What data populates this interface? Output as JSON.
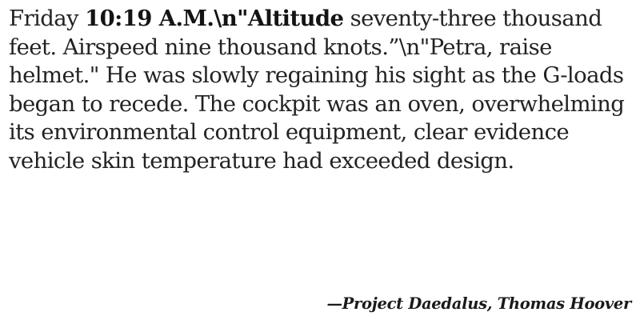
{
  "quote": {
    "segments": [
      {
        "text": "Friday ",
        "bold": false
      },
      {
        "text": "10:19 A.M.\\n\"Altitude",
        "bold": true
      },
      {
        "text": " seventy-three thousand feet. Airspeed nine thousand knots.”\\n\"Petra, raise helmet.\" He was slowly regaining his sight as the G-loads began to recede. The cockpit was an oven, overwhelming its environmental control equipment, clear evidence vehicle skin temperature had exceeded design.",
        "bold": false
      }
    ]
  },
  "attribution": {
    "text": "—Project Daedalus, Thomas Hoover"
  }
}
